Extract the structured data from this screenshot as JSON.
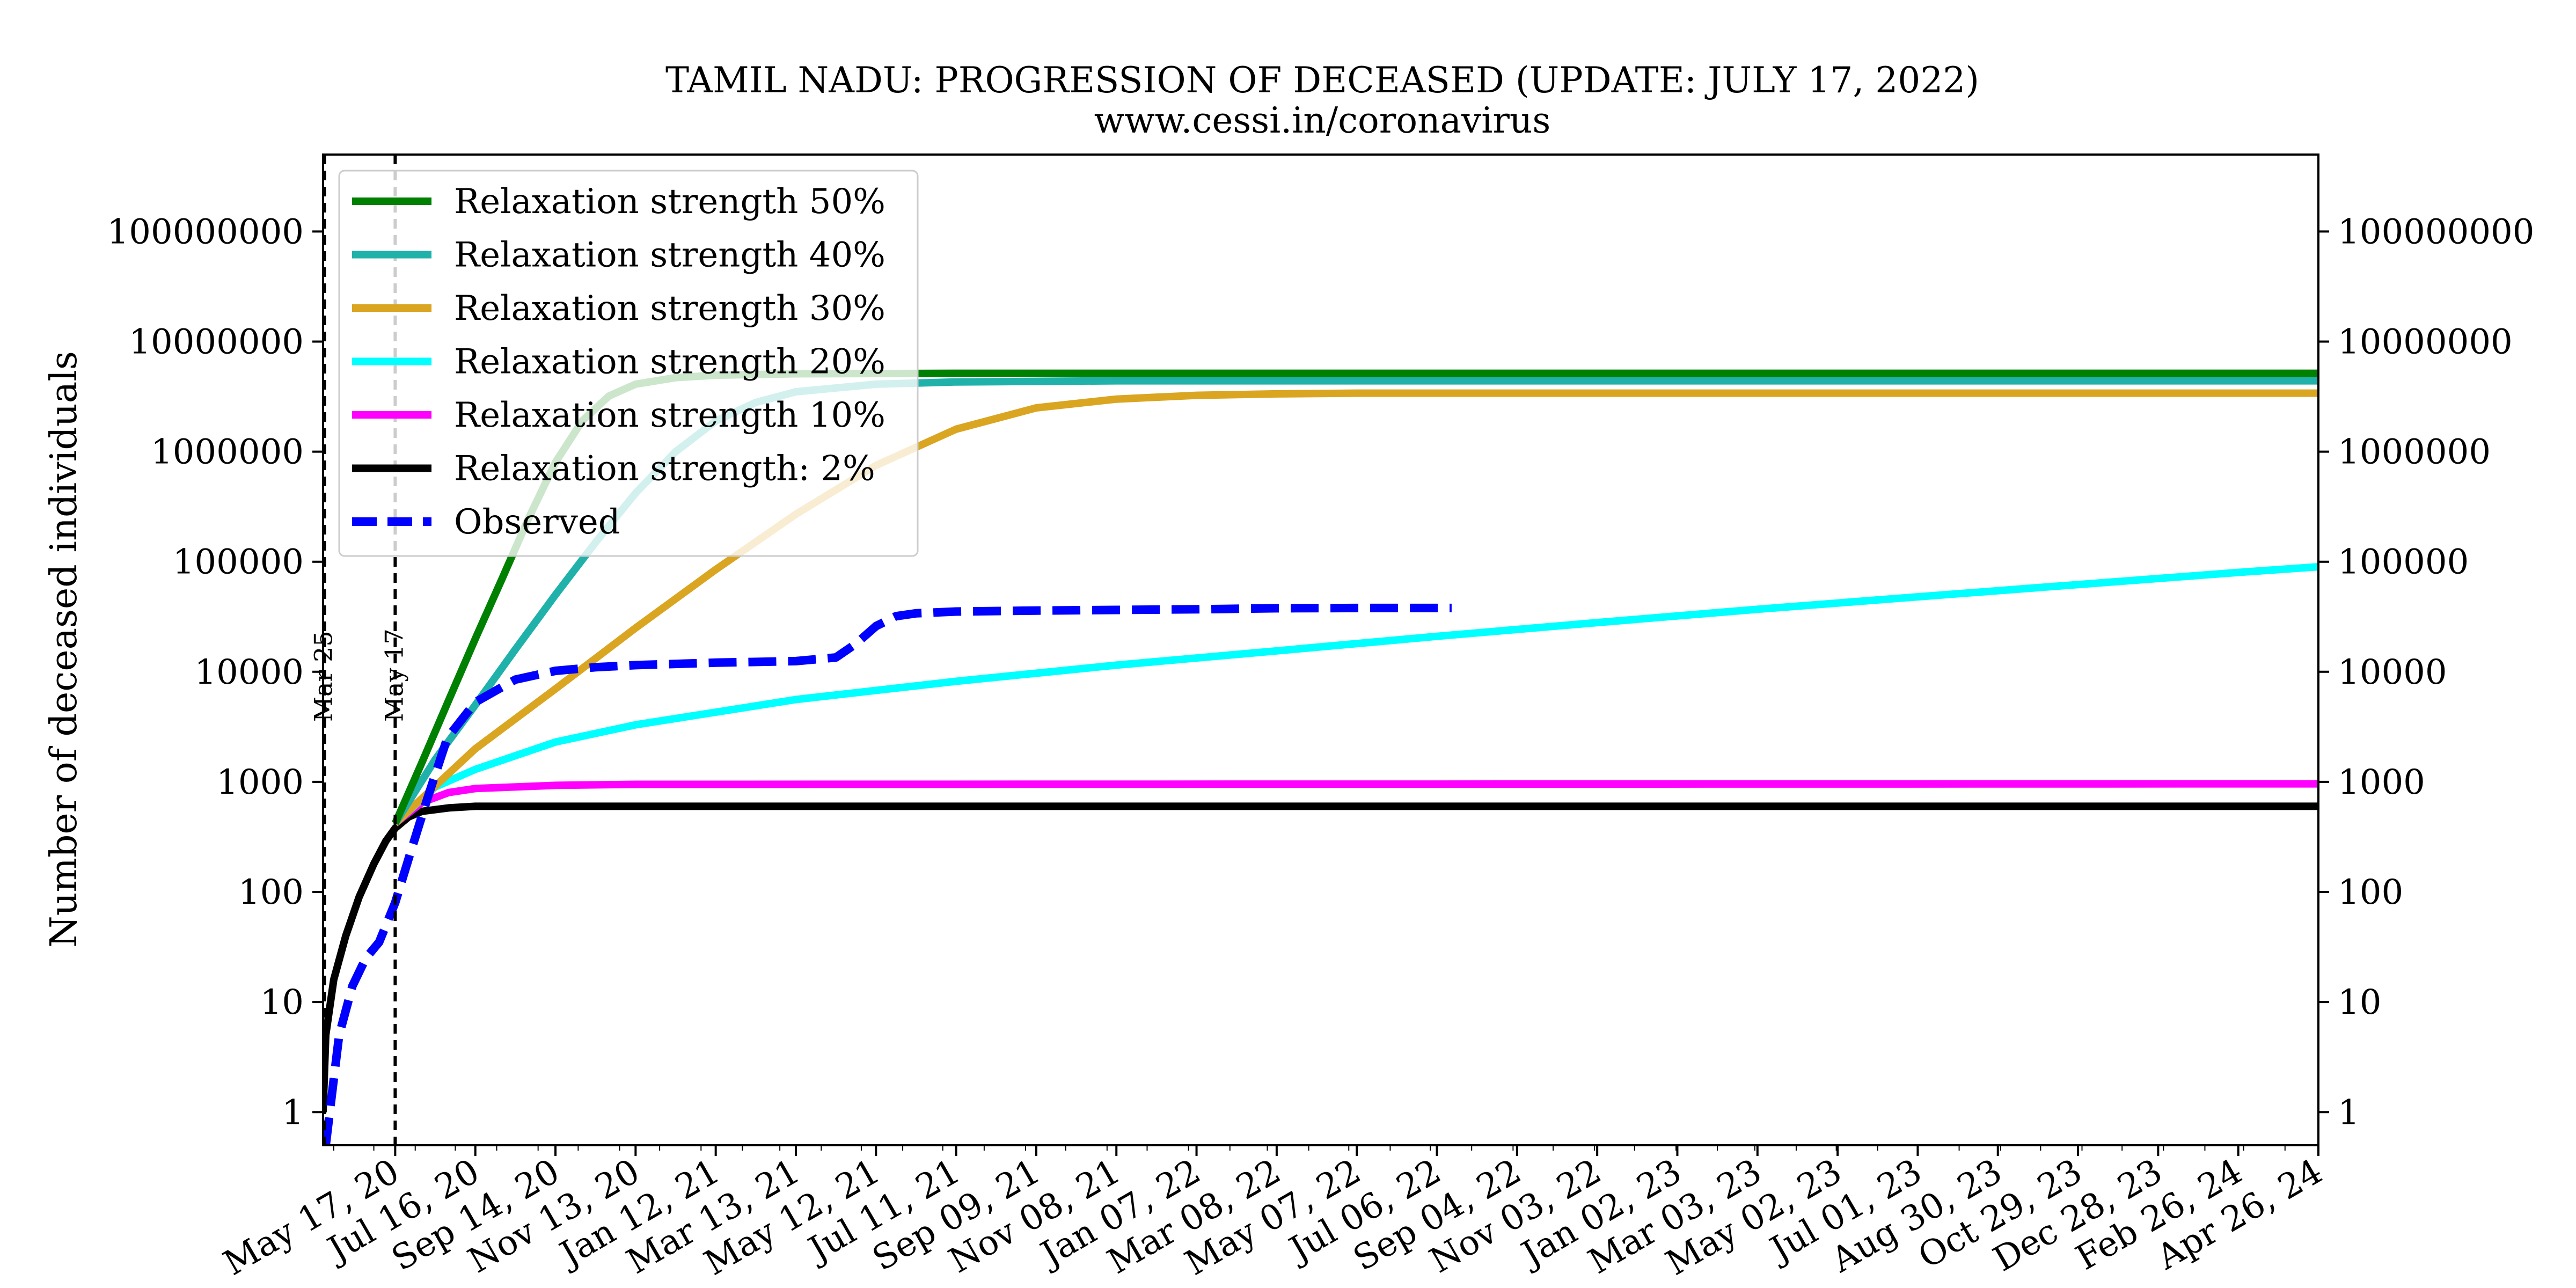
{
  "chart_data": {
    "type": "line",
    "title": "TAMIL NADU: PROGRESSION OF DECEASED (UPDATE: JULY 17, 2022)",
    "subtitle": "www.cessi.in/coronavirus",
    "ylabel": "Number of deceased individuals",
    "xlabel": "",
    "y_scale": "log",
    "ylim": [
      0.5,
      500000000
    ],
    "xlim": [
      "2020-03-24",
      "2024-04-26"
    ],
    "grid": false,
    "legend_position": "upper-left",
    "y_tick_labels": [
      "1",
      "10",
      "100",
      "1000",
      "10000",
      "100000",
      "1000000",
      "10000000",
      "100000000"
    ],
    "y_tick_values": [
      1,
      10,
      100,
      1000,
      10000,
      100000,
      1000000,
      10000000,
      100000000
    ],
    "x_tick_labels": [
      "May 17, 20",
      "Jul 16, 20",
      "Sep 14, 20",
      "Nov 13, 20",
      "Jan 12, 21",
      "Mar 13, 21",
      "May 12, 21",
      "Jul 11, 21",
      "Sep 09, 21",
      "Nov 08, 21",
      "Jan 07, 22",
      "Mar 08, 22",
      "May 07, 22",
      "Jul 06, 22",
      "Sep 04, 22",
      "Nov 03, 22",
      "Jan 02, 23",
      "Mar 03, 23",
      "May 02, 23",
      "Jul 01, 23",
      "Aug 30, 23",
      "Oct 29, 23",
      "Dec 28, 23",
      "Feb 26, 24",
      "Apr 26, 24"
    ],
    "x_tick_dates": [
      "2020-05-17",
      "2020-07-16",
      "2020-09-14",
      "2020-11-13",
      "2021-01-12",
      "2021-03-13",
      "2021-05-12",
      "2021-07-11",
      "2021-09-09",
      "2021-11-08",
      "2022-01-07",
      "2022-03-08",
      "2022-05-07",
      "2022-07-06",
      "2022-09-04",
      "2022-11-03",
      "2023-01-02",
      "2023-03-03",
      "2023-05-02",
      "2023-07-01",
      "2023-08-30",
      "2023-10-29",
      "2023-12-28",
      "2024-02-26",
      "2024-04-26"
    ],
    "vertical_lines": [
      {
        "date": "2020-03-25",
        "label": "Mar 25"
      },
      {
        "date": "2020-05-17",
        "label": "May 17"
      }
    ],
    "series": [
      {
        "name": "Relaxation strength 50%",
        "color": "#008000",
        "style": "solid",
        "x": [
          "2020-05-17",
          "2020-06-06",
          "2020-06-26",
          "2020-07-16",
          "2020-08-05",
          "2020-08-25",
          "2020-09-14",
          "2020-10-04",
          "2020-10-24",
          "2020-11-13",
          "2020-12-13",
          "2021-01-12",
          "2021-03-13",
          "2021-07-11",
          "2024-04-26"
        ],
        "y": [
          420,
          1500,
          5500,
          20000,
          70000,
          250000,
          800000,
          1900000,
          3200000,
          4100000,
          4700000,
          4950000,
          5100000,
          5150000,
          5150000
        ]
      },
      {
        "name": "Relaxation strength 40%",
        "color": "#20b2aa",
        "style": "solid",
        "x": [
          "2020-05-17",
          "2020-06-16",
          "2020-07-16",
          "2020-08-15",
          "2020-09-14",
          "2020-10-14",
          "2020-11-13",
          "2020-12-13",
          "2021-01-12",
          "2021-02-11",
          "2021-03-13",
          "2021-05-12",
          "2021-07-11",
          "2021-11-08",
          "2024-04-26"
        ],
        "y": [
          420,
          1600,
          5000,
          16000,
          50000,
          150000,
          420000,
          1000000,
          1900000,
          2800000,
          3500000,
          4100000,
          4300000,
          4400000,
          4400000
        ]
      },
      {
        "name": "Relaxation strength 30%",
        "color": "#daa520",
        "style": "solid",
        "x": [
          "2020-05-17",
          "2020-07-16",
          "2020-09-14",
          "2020-11-13",
          "2021-01-12",
          "2021-03-13",
          "2021-05-12",
          "2021-07-11",
          "2021-09-09",
          "2021-11-08",
          "2022-01-07",
          "2022-03-08",
          "2022-05-07",
          "2024-04-26"
        ],
        "y": [
          420,
          2000,
          7000,
          25000,
          85000,
          270000,
          750000,
          1600000,
          2500000,
          3000000,
          3250000,
          3350000,
          3400000,
          3400000
        ]
      },
      {
        "name": "Relaxation strength 20%",
        "color": "#00ffff",
        "style": "solid",
        "x": [
          "2020-05-17",
          "2020-06-16",
          "2020-07-16",
          "2020-09-14",
          "2020-11-13",
          "2021-03-13",
          "2021-07-11",
          "2021-11-08",
          "2022-03-08",
          "2022-07-06",
          "2022-11-03",
          "2023-03-03",
          "2023-07-01",
          "2023-10-29",
          "2024-02-26",
          "2024-04-26"
        ],
        "y": [
          420,
          900,
          1300,
          2300,
          3300,
          5600,
          8200,
          11500,
          15500,
          21000,
          28000,
          37000,
          48000,
          62000,
          80000,
          90000
        ]
      },
      {
        "name": "Relaxation strength 10%",
        "color": "#ff00ff",
        "style": "solid",
        "x": [
          "2020-05-17",
          "2020-06-06",
          "2020-06-26",
          "2020-07-16",
          "2020-09-14",
          "2020-11-13",
          "2024-04-26"
        ],
        "y": [
          420,
          650,
          800,
          870,
          930,
          950,
          960
        ]
      },
      {
        "name": "Relaxation strength: 2%",
        "color": "#000000",
        "style": "solid",
        "x": [
          "2020-03-24",
          "2020-03-26",
          "2020-04-01",
          "2020-04-10",
          "2020-04-20",
          "2020-05-01",
          "2020-05-10",
          "2020-05-17",
          "2020-05-27",
          "2020-06-06",
          "2020-06-26",
          "2020-07-16",
          "2024-04-26"
        ],
        "y": [
          1,
          5,
          16,
          40,
          90,
          180,
          290,
          380,
          480,
          540,
          580,
          600,
          600
        ]
      },
      {
        "name": "Observed",
        "color": "#0000ff",
        "style": "dashed",
        "x": [
          "2020-03-26",
          "2020-03-29",
          "2020-04-05",
          "2020-04-15",
          "2020-04-25",
          "2020-05-05",
          "2020-05-17",
          "2020-05-27",
          "2020-06-10",
          "2020-06-25",
          "2020-07-16",
          "2020-08-15",
          "2020-09-14",
          "2020-10-14",
          "2020-11-13",
          "2021-01-12",
          "2021-03-13",
          "2021-04-12",
          "2021-04-27",
          "2021-05-12",
          "2021-05-27",
          "2021-06-11",
          "2021-07-11",
          "2021-09-09",
          "2021-11-08",
          "2022-01-07",
          "2022-03-08",
          "2022-05-07",
          "2022-07-17"
        ],
        "y": [
          0.5,
          1,
          5,
          14,
          25,
          35,
          80,
          200,
          700,
          2500,
          5300,
          8500,
          10200,
          11000,
          11500,
          12100,
          12500,
          13500,
          18000,
          26000,
          32000,
          34000,
          35300,
          36000,
          36500,
          37000,
          37800,
          38000,
          38000
        ]
      }
    ]
  }
}
